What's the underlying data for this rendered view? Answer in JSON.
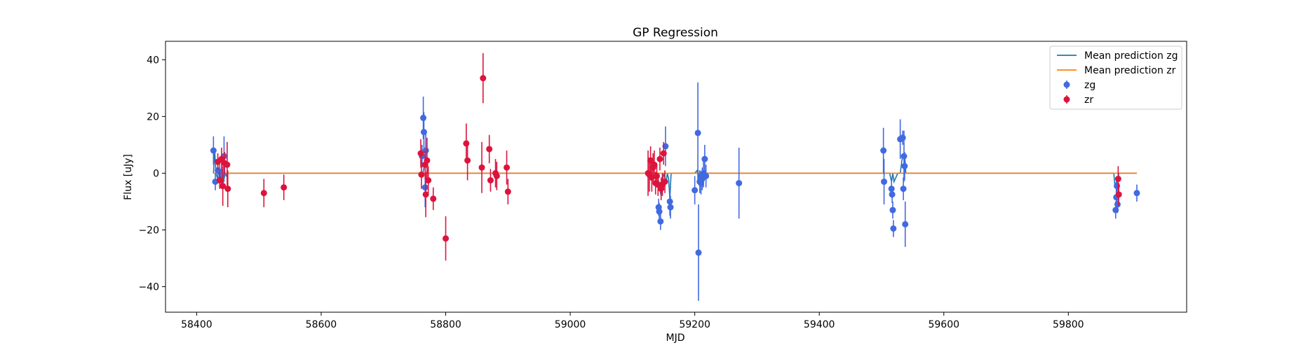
{
  "chart_data": {
    "type": "scatter",
    "title": "GP Regression",
    "xlabel": "MJD",
    "ylabel": "Flux [uJy]",
    "xlim": [
      58350,
      59990
    ],
    "ylim": [
      -49,
      46.5
    ],
    "xticks": [
      58400,
      58600,
      58800,
      59000,
      59200,
      59400,
      59600,
      59800
    ],
    "yticks": [
      -40,
      -20,
      0,
      20,
      40
    ],
    "grid": false,
    "legend_position": "upper-right",
    "legend": {
      "items": [
        {
          "label": "Mean prediction zg",
          "kind": "line",
          "color": "#1f77b4"
        },
        {
          "label": "Mean prediction zr",
          "kind": "line",
          "color": "#ff7f0e"
        },
        {
          "label": "zg",
          "kind": "errorbar",
          "color": "#4169e1"
        },
        {
          "label": "zr",
          "kind": "errorbar",
          "color": "#dc143c"
        }
      ]
    },
    "mean_lines": [
      {
        "name": "Mean prediction zg",
        "color": "#1f77b4",
        "x": [
          58427,
          58429,
          58431,
          58435,
          58437,
          58440,
          58442,
          58444,
          58446,
          58448,
          58450,
          58760,
          58763,
          58765,
          58767,
          58769,
          58771,
          58773,
          59140,
          59142,
          59144,
          59146,
          59150,
          59154,
          59156,
          59158,
          59160,
          59162,
          59200,
          59204,
          59206,
          59208,
          59210,
          59212,
          59214,
          59216,
          59218,
          59500,
          59503,
          59513,
          59516,
          59518,
          59520,
          59526,
          59530,
          59533,
          59535,
          59537,
          59539,
          59540,
          59873,
          59875,
          59877,
          59879,
          59881,
          59910
        ],
        "y": [
          0,
          8,
          0,
          -3,
          0,
          -2.5,
          0,
          -2,
          0,
          -1,
          0,
          0,
          -0.5,
          2,
          3,
          3,
          0,
          0,
          0,
          -3,
          -6,
          -8,
          0,
          -3,
          0,
          -2,
          -9,
          0,
          0,
          1,
          -2,
          1,
          -1,
          1,
          -1,
          1,
          0,
          0,
          0,
          0,
          -3,
          0,
          -3,
          0,
          0,
          5,
          6,
          7,
          0,
          0,
          0,
          -5,
          -3,
          -5,
          0,
          0
        ]
      },
      {
        "name": "Mean prediction zr",
        "color": "#ff7f0e",
        "x": [
          58427,
          59910
        ],
        "y": [
          0,
          0
        ]
      }
    ],
    "series": [
      {
        "name": "zg",
        "color": "#4169e1",
        "points": [
          {
            "x": 58427,
            "y": 8,
            "err": 5
          },
          {
            "x": 58430,
            "y": -3,
            "err": 3
          },
          {
            "x": 58434,
            "y": 1,
            "err": 3
          },
          {
            "x": 58437,
            "y": 0.5,
            "err": 3.5
          },
          {
            "x": 58440,
            "y": -2.5,
            "err": 3
          },
          {
            "x": 58444,
            "y": 6,
            "err": 7
          },
          {
            "x": 58762,
            "y": 6,
            "err": 4
          },
          {
            "x": 58764,
            "y": 19.5,
            "err": 7.5
          },
          {
            "x": 58765,
            "y": 14.5,
            "err": 7
          },
          {
            "x": 58767,
            "y": -5,
            "err": 7
          },
          {
            "x": 58768,
            "y": 8,
            "err": 6
          },
          {
            "x": 59142,
            "y": -12,
            "err": 3
          },
          {
            "x": 59143,
            "y": -13.5,
            "err": 3
          },
          {
            "x": 59145,
            "y": -17,
            "err": 3
          },
          {
            "x": 59153,
            "y": 9.5,
            "err": 7
          },
          {
            "x": 59160,
            "y": -10,
            "err": 5
          },
          {
            "x": 59161,
            "y": -12,
            "err": 4
          },
          {
            "x": 59200,
            "y": -6,
            "err": 5
          },
          {
            "x": 59205,
            "y": 14.2,
            "err": 17.8
          },
          {
            "x": 59206,
            "y": -28,
            "err": 17
          },
          {
            "x": 59208,
            "y": -3,
            "err": 4
          },
          {
            "x": 59210,
            "y": -3.5,
            "err": 4
          },
          {
            "x": 59212,
            "y": -2,
            "err": 4
          },
          {
            "x": 59214,
            "y": 0,
            "err": 5
          },
          {
            "x": 59216,
            "y": 5,
            "err": 5
          },
          {
            "x": 59218,
            "y": -1,
            "err": 4
          },
          {
            "x": 59271,
            "y": -3.5,
            "err": 12.5
          },
          {
            "x": 59503,
            "y": 8,
            "err": 8
          },
          {
            "x": 59504,
            "y": -3,
            "err": 8
          },
          {
            "x": 59516,
            "y": -5.5,
            "err": 3
          },
          {
            "x": 59517,
            "y": -7.5,
            "err": 3
          },
          {
            "x": 59518,
            "y": -13,
            "err": 3
          },
          {
            "x": 59519,
            "y": -19.5,
            "err": 3
          },
          {
            "x": 59530,
            "y": 12,
            "err": 7
          },
          {
            "x": 59534,
            "y": 12.5,
            "err": 2.5
          },
          {
            "x": 59535,
            "y": -5.5,
            "err": 4
          },
          {
            "x": 59536,
            "y": 6,
            "err": 9
          },
          {
            "x": 59537,
            "y": 2.5,
            "err": 5
          },
          {
            "x": 59538,
            "y": -18,
            "err": 8
          },
          {
            "x": 59876,
            "y": -13,
            "err": 3
          },
          {
            "x": 59877,
            "y": -8.5,
            "err": 3
          },
          {
            "x": 59878,
            "y": -4.5,
            "err": 3
          },
          {
            "x": 59879,
            "y": -11,
            "err": 3
          },
          {
            "x": 59910,
            "y": -7,
            "err": 3
          }
        ]
      },
      {
        "name": "zr",
        "color": "#dc143c",
        "points": [
          {
            "x": 58434,
            "y": 4,
            "err": 3
          },
          {
            "x": 58437,
            "y": -2.5,
            "err": 3
          },
          {
            "x": 58440,
            "y": 5,
            "err": 4
          },
          {
            "x": 58442,
            "y": -4.5,
            "err": 7
          },
          {
            "x": 58445,
            "y": 3.5,
            "err": 4
          },
          {
            "x": 58449,
            "y": 3,
            "err": 8
          },
          {
            "x": 58450,
            "y": -5.5,
            "err": 6.5
          },
          {
            "x": 58508,
            "y": -7,
            "err": 5
          },
          {
            "x": 58540,
            "y": -5,
            "err": 4.5
          },
          {
            "x": 58760,
            "y": 7,
            "err": 5
          },
          {
            "x": 58761,
            "y": -0.5,
            "err": 5
          },
          {
            "x": 58767,
            "y": 3,
            "err": 5
          },
          {
            "x": 58768,
            "y": -7.5,
            "err": 8
          },
          {
            "x": 58770,
            "y": 4.5,
            "err": 8
          },
          {
            "x": 58772,
            "y": -2.5,
            "err": 5
          },
          {
            "x": 58780,
            "y": -9,
            "err": 4
          },
          {
            "x": 58800,
            "y": -23,
            "err": 7.8
          },
          {
            "x": 58833,
            "y": 10.5,
            "err": 7
          },
          {
            "x": 58835,
            "y": 4.5,
            "err": 7
          },
          {
            "x": 58858,
            "y": 2,
            "err": 9
          },
          {
            "x": 58860,
            "y": 33.5,
            "err": 8.8
          },
          {
            "x": 58870,
            "y": 8.5,
            "err": 5
          },
          {
            "x": 58872,
            "y": -2.5,
            "err": 4
          },
          {
            "x": 58880,
            "y": 0,
            "err": 5
          },
          {
            "x": 58882,
            "y": -1,
            "err": 5
          },
          {
            "x": 58898,
            "y": 2,
            "err": 6
          },
          {
            "x": 58900,
            "y": -6.5,
            "err": 4.5
          },
          {
            "x": 59125,
            "y": 0,
            "err": 8
          },
          {
            "x": 59127,
            "y": -0.5,
            "err": 6
          },
          {
            "x": 59129,
            "y": 4.5,
            "err": 5
          },
          {
            "x": 59131,
            "y": -1.5,
            "err": 5
          },
          {
            "x": 59133,
            "y": 2,
            "err": 5
          },
          {
            "x": 59135,
            "y": 3,
            "err": 5
          },
          {
            "x": 59137,
            "y": -3.5,
            "err": 4
          },
          {
            "x": 59139,
            "y": -1,
            "err": 4
          },
          {
            "x": 59141,
            "y": -4,
            "err": 4
          },
          {
            "x": 59144,
            "y": 5,
            "err": 4
          },
          {
            "x": 59146,
            "y": -5.5,
            "err": 4
          },
          {
            "x": 59148,
            "y": -4,
            "err": 4
          },
          {
            "x": 59150,
            "y": 7,
            "err": 4
          },
          {
            "x": 59152,
            "y": -3,
            "err": 4
          },
          {
            "x": 59880,
            "y": -2,
            "err": 4.5
          },
          {
            "x": 59881,
            "y": -7.5,
            "err": 4
          }
        ]
      }
    ]
  }
}
